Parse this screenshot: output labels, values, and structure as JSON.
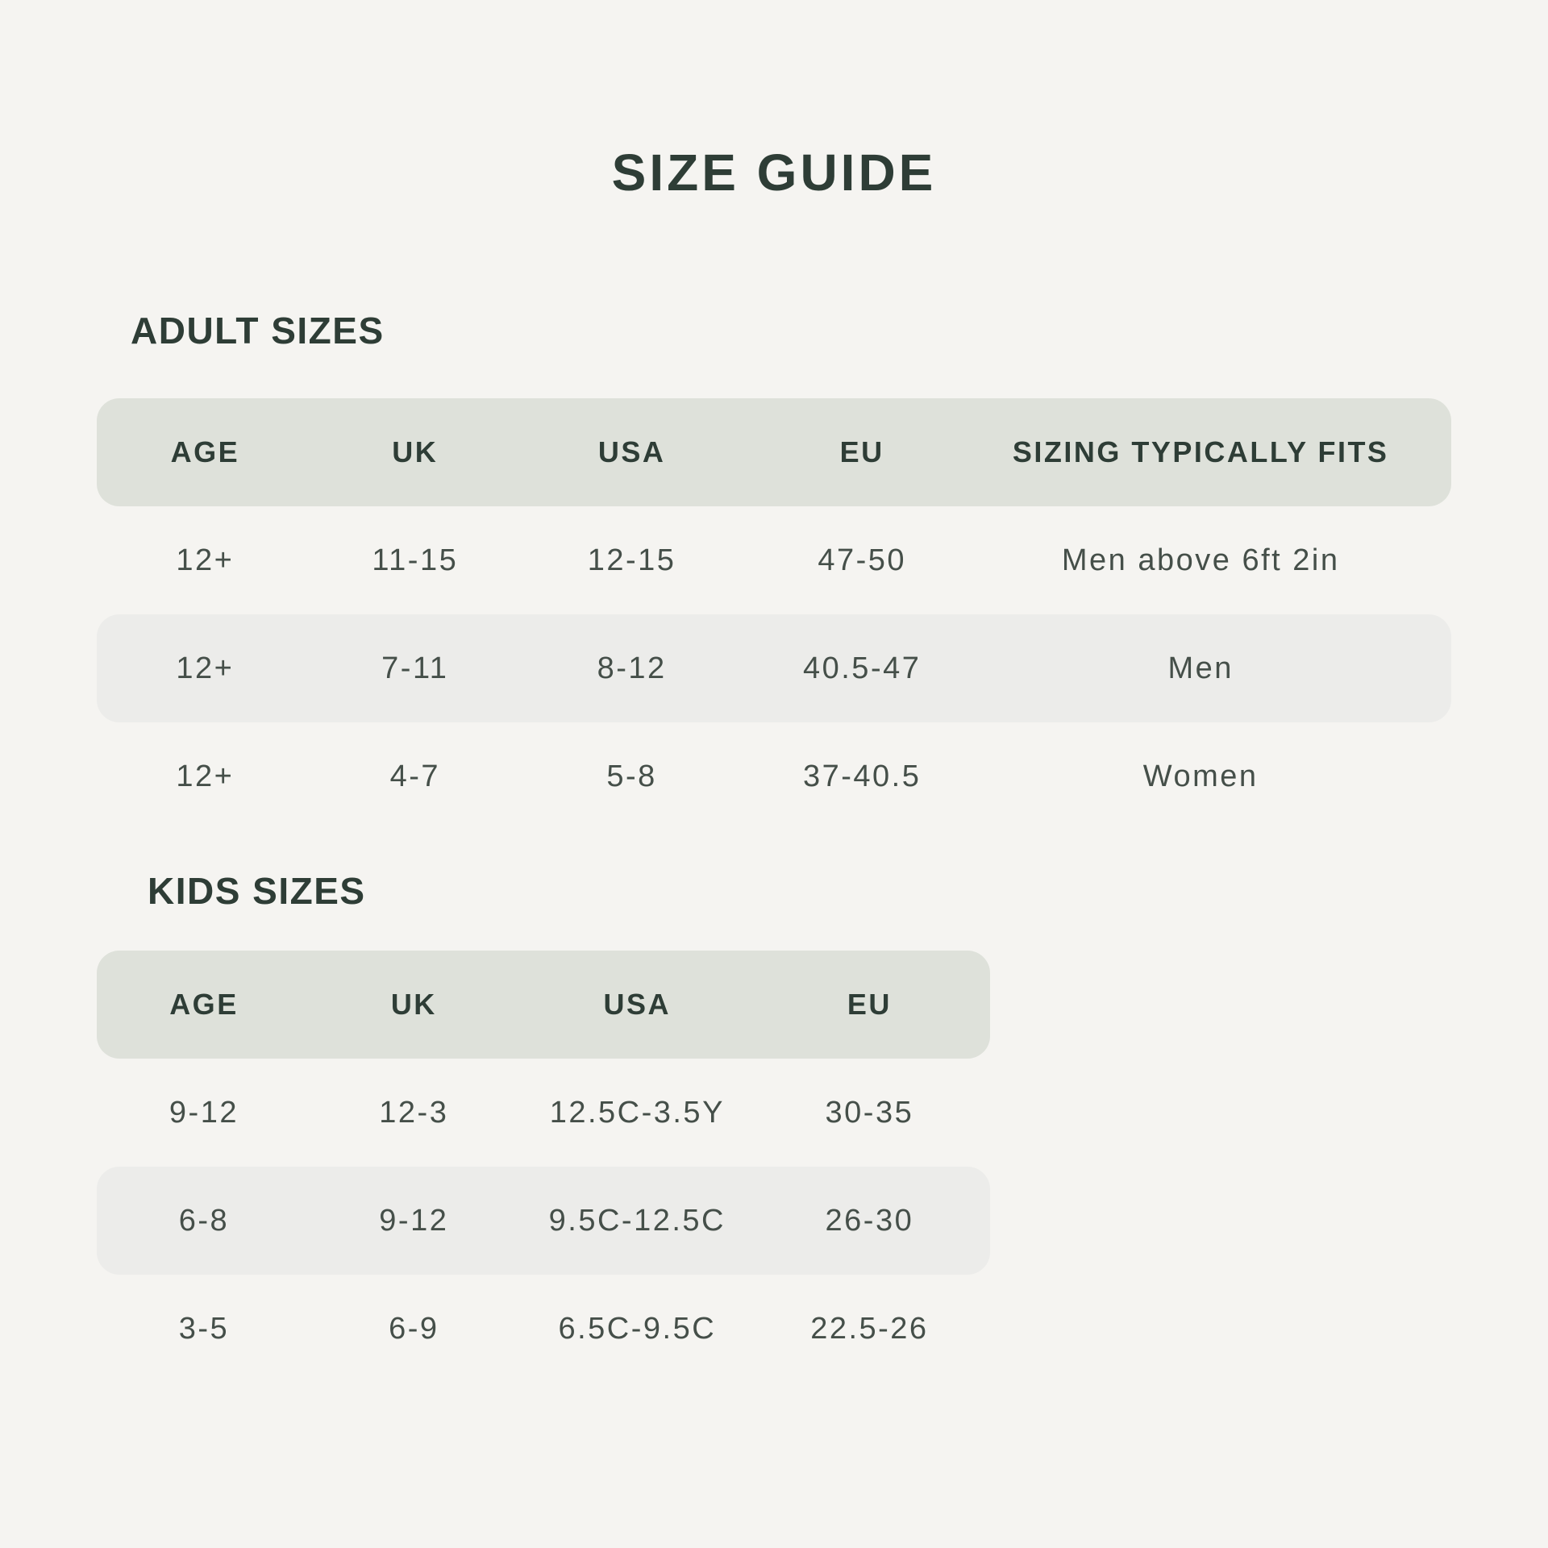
{
  "page": {
    "title": "SIZE GUIDE"
  },
  "colors": {
    "background": "#f5f4f1",
    "table_header_bg": "#dee1da",
    "alt_row_bg": "#ececea",
    "heading_text": "#2e3d36",
    "data_text": "#454f49"
  },
  "adult": {
    "heading": "ADULT SIZES",
    "columns": [
      "AGE",
      "UK",
      "USA",
      "EU",
      "SIZING TYPICALLY FITS"
    ],
    "rows": [
      [
        "12+",
        "11-15",
        "12-15",
        "47-50",
        "Men above 6ft 2in"
      ],
      [
        "12+",
        "7-11",
        "8-12",
        "40.5-47",
        "Men"
      ],
      [
        "12+",
        "4-7",
        "5-8",
        "37-40.5",
        "Women"
      ]
    ]
  },
  "kids": {
    "heading": "KIDS SIZES",
    "columns": [
      "AGE",
      "UK",
      "USA",
      "EU"
    ],
    "rows": [
      [
        "9-12",
        "12-3",
        "12.5C-3.5Y",
        "30-35"
      ],
      [
        "6-8",
        "9-12",
        "9.5C-12.5C",
        "26-30"
      ],
      [
        "3-5",
        "6-9",
        "6.5C-9.5C",
        "22.5-26"
      ]
    ]
  }
}
